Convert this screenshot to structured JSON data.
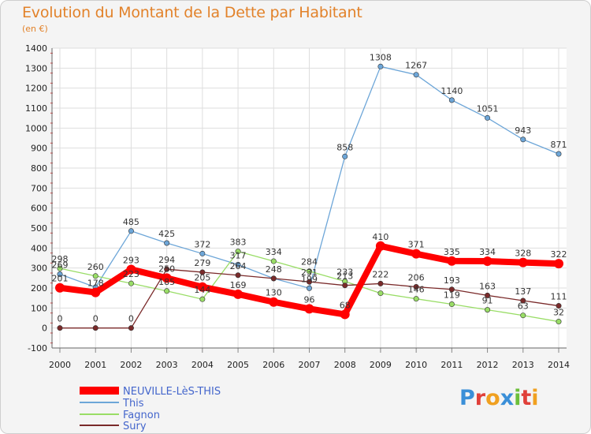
{
  "title": "Evolution du Montant de la Dette par Habitant",
  "unit": "(en €)",
  "brand": "Proxiti",
  "chart_data": {
    "type": "line",
    "title": "Evolution du Montant de la Dette par Habitant",
    "ylabel": "(en €)",
    "xlabel": "",
    "x": [
      "2000",
      "2001",
      "2002",
      "2003",
      "2004",
      "2005",
      "2006",
      "2007",
      "2008",
      "2009",
      "2010",
      "2011",
      "2012",
      "2013",
      "2014"
    ],
    "ylim": [
      -100,
      1400
    ],
    "yticks": [
      "-100",
      "0",
      "100",
      "200",
      "300",
      "400",
      "500",
      "600",
      "700",
      "800",
      "900",
      "1000",
      "1100",
      "1200",
      "1300",
      "1400"
    ],
    "grid": true,
    "legend_position": "bottom-left",
    "series": [
      {
        "name": "NEUVILLE-LèS-THIS",
        "color": "#ff0000",
        "values": [
          201,
          178,
          293,
          250,
          205,
          169,
          130,
          96,
          68,
          410,
          371,
          335,
          334,
          328,
          322
        ],
        "labels": [
          "201",
          "178",
          "293",
          "250",
          "205",
          "169",
          "130",
          "96",
          "68",
          "410",
          "371",
          "335",
          "334",
          "328",
          "322"
        ]
      },
      {
        "name": "This",
        "color": "#6da6d8",
        "values": [
          269,
          204,
          485,
          425,
          372,
          317,
          248,
          199,
          858,
          1308,
          1267,
          1140,
          1051,
          943,
          871
        ],
        "labels": [
          "269",
          "",
          "485",
          "425",
          "372",
          "317",
          "248",
          "199",
          "858",
          "1308",
          "1267",
          "1140",
          "1051",
          "943",
          "871"
        ]
      },
      {
        "name": "Fagnon",
        "color": "#99dd66",
        "values": [
          298,
          260,
          223,
          185,
          144,
          383,
          334,
          284,
          233,
          174,
          146,
          119,
          91,
          63,
          32
        ],
        "labels": [
          "298",
          "260",
          "223",
          "185",
          "144",
          "383",
          "334",
          "284",
          "233",
          "",
          "146",
          "119",
          "91",
          "63",
          "32"
        ]
      },
      {
        "name": "Sury",
        "color": "#7a2a2a",
        "values": [
          0,
          0,
          0,
          294,
          279,
          264,
          248,
          231,
          213,
          222,
          206,
          193,
          163,
          137,
          111
        ],
        "labels": [
          "0",
          "0",
          "0",
          "294",
          "279",
          "264",
          "",
          "231",
          "213",
          "222",
          "206",
          "193",
          "163",
          "137",
          "111"
        ]
      }
    ]
  }
}
